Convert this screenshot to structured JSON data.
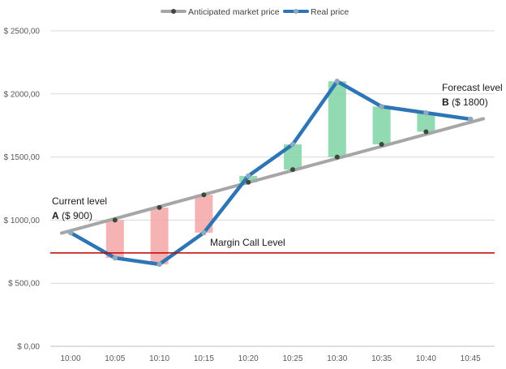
{
  "chart_data": {
    "type": "line",
    "title": "",
    "categories": [
      "10:00",
      "10:05",
      "10:10",
      "10:15",
      "10:20",
      "10:25",
      "10:30",
      "10:35",
      "10:40",
      "10:45"
    ],
    "series": [
      {
        "name": "Anticipated market price",
        "color": "#a6a6a6",
        "marker_color": "#3a4a3a",
        "values": [
          900,
          1000,
          1100,
          1200,
          1300,
          1400,
          1500,
          1600,
          1700,
          1800
        ]
      },
      {
        "name": "Real price",
        "color": "#2e75b6",
        "marker_color": "#8faabf",
        "values": [
          900,
          700,
          650,
          900,
          1350,
          1600,
          2100,
          1900,
          1850,
          1800
        ]
      }
    ],
    "ylim": [
      0,
      2500
    ],
    "y_ticks": [
      0,
      500,
      1000,
      1500,
      2000,
      2500
    ],
    "y_tick_labels": [
      "$ 0,00",
      "$ 500,00",
      "$ 1000,00",
      "$ 1500,00",
      "$ 2000,00",
      "$ 2500,00"
    ],
    "grid": true,
    "legend_position": "top",
    "loss_color": "#f4a6a6",
    "gain_color": "#7fd4a3",
    "margin_call": {
      "value": 740,
      "label": "Margin Call Level",
      "color": "#c00000"
    },
    "annotations": {
      "current": {
        "line1": "Current level",
        "bold": "A",
        "rest": " ($ 900)"
      },
      "forecast": {
        "line1": "Forecast level",
        "bold": "B",
        "rest": " ($ 1800)"
      }
    }
  }
}
